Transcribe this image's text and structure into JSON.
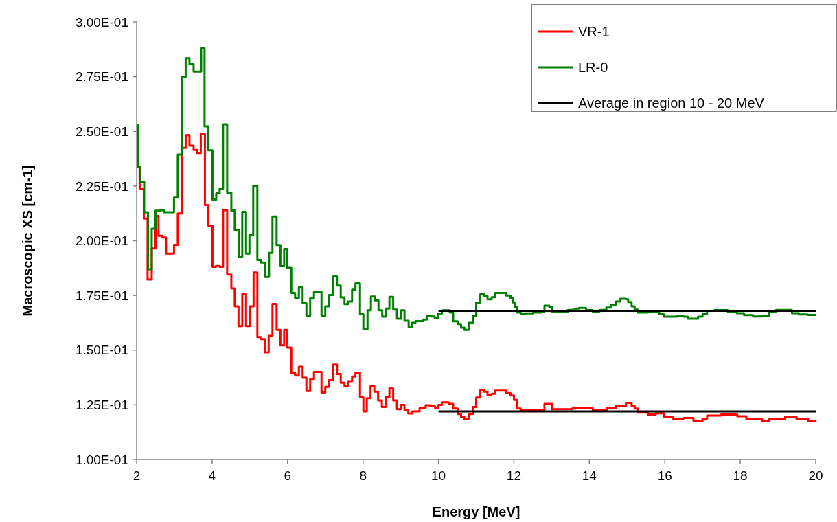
{
  "chart_data": {
    "type": "step",
    "xlabel": "Energy [MeV]",
    "ylabel": "Macroscopic XS [cm-1]",
    "xlim": [
      2,
      20
    ],
    "xticks": [
      2,
      4,
      6,
      8,
      10,
      12,
      14,
      16,
      18,
      20
    ],
    "ylim": [
      0.1,
      0.3
    ],
    "yticks": [
      {
        "value": 0.1,
        "label": "1.00E-01"
      },
      {
        "value": 0.125,
        "label": "1.25E-01"
      },
      {
        "value": 0.15,
        "label": "1.50E-01"
      },
      {
        "value": 0.175,
        "label": "1.75E-01"
      },
      {
        "value": 0.2,
        "label": "2.00E-01"
      },
      {
        "value": 0.225,
        "label": "2.25E-01"
      },
      {
        "value": 0.25,
        "label": "2.50E-01"
      },
      {
        "value": 0.275,
        "label": "2.75E-01"
      },
      {
        "value": 0.3,
        "label": "3.00E-01"
      }
    ],
    "grid": false,
    "legend": "top right",
    "line_style": "solid",
    "marker": "none",
    "series": [
      {
        "name": "VR-1",
        "color": "#ff0000",
        "x": [
          2.0,
          2.08,
          2.19,
          2.29,
          2.4,
          2.5,
          2.58,
          2.68,
          2.78,
          2.99,
          3.09,
          3.2,
          3.3,
          3.4,
          3.51,
          3.6,
          3.7,
          3.81,
          3.9,
          4.01,
          4.1,
          4.2,
          4.29,
          4.4,
          4.51,
          4.6,
          4.7,
          4.8,
          4.9,
          5.0,
          5.1,
          5.2,
          5.3,
          5.4,
          5.5,
          5.6,
          5.71,
          5.81,
          5.91,
          5.99,
          6.1,
          6.2,
          6.3,
          6.4,
          6.5,
          6.6,
          6.7,
          6.9,
          7.0,
          7.1,
          7.21,
          7.31,
          7.41,
          7.51,
          7.6,
          7.71,
          7.8,
          7.92,
          8.01,
          8.1,
          8.2,
          8.3,
          8.4,
          8.5,
          8.6,
          8.7,
          8.8,
          8.9,
          9.0,
          9.1,
          9.2,
          9.3,
          9.5,
          9.66,
          9.78,
          9.91,
          10.0,
          10.09,
          10.27,
          10.39,
          10.51,
          10.6,
          10.69,
          10.8,
          10.91,
          11.0,
          11.11,
          11.21,
          11.3,
          11.41,
          11.5,
          11.8,
          11.91,
          12.0,
          12.09,
          12.18,
          12.81,
          13.01,
          13.55,
          14.09,
          14.46,
          14.7,
          14.97,
          15.12,
          15.2,
          15.28,
          15.55,
          15.76,
          15.97,
          16.22,
          16.49,
          16.76,
          17.0,
          17.12,
          17.49,
          17.92,
          18.16,
          18.58,
          18.76,
          19.19,
          19.49,
          19.8,
          20
        ],
        "values": [
          0.2339,
          0.2237,
          0.2101,
          0.1823,
          0.1965,
          0.2113,
          0.2023,
          0.2015,
          0.1941,
          0.1981,
          0.2125,
          0.2425,
          0.2483,
          0.2435,
          0.2415,
          0.2401,
          0.2488,
          0.2163,
          0.2069,
          0.1881,
          0.1885,
          0.1881,
          0.214,
          0.1845,
          0.1782,
          0.17,
          0.161,
          0.1757,
          0.161,
          0.17,
          0.1855,
          0.156,
          0.155,
          0.149,
          0.1565,
          0.1711,
          0.1593,
          0.1522,
          0.1593,
          0.1512,
          0.1397,
          0.1384,
          0.1424,
          0.1374,
          0.1313,
          0.1368,
          0.14,
          0.1306,
          0.1332,
          0.1363,
          0.1434,
          0.1391,
          0.1351,
          0.1334,
          0.1358,
          0.1379,
          0.1397,
          0.1284,
          0.122,
          0.128,
          0.1335,
          0.131,
          0.127,
          0.124,
          0.1285,
          0.1325,
          0.127,
          0.123,
          0.125,
          0.1225,
          0.121,
          0.122,
          0.1235,
          0.1248,
          0.1243,
          0.1234,
          0.125,
          0.1261,
          0.1254,
          0.1233,
          0.1208,
          0.1194,
          0.1185,
          0.1208,
          0.124,
          0.1283,
          0.1318,
          0.131,
          0.1297,
          0.1301,
          0.1315,
          0.1304,
          0.1293,
          0.1272,
          0.1233,
          0.1226,
          0.1254,
          0.123,
          0.1234,
          0.1226,
          0.1234,
          0.1243,
          0.1259,
          0.1245,
          0.1233,
          0.1214,
          0.1206,
          0.1211,
          0.1193,
          0.1185,
          0.119,
          0.1177,
          0.1187,
          0.1201,
          0.1206,
          0.1198,
          0.1185,
          0.1175,
          0.1187,
          0.1196,
          0.1187,
          0.1176,
          0.1175
        ]
      },
      {
        "name": "LR-0",
        "color": "#008000",
        "x": [
          2.0,
          2.03,
          2.08,
          2.2,
          2.3,
          2.4,
          2.5,
          2.62,
          2.72,
          2.99,
          3.09,
          3.2,
          3.3,
          3.4,
          3.51,
          3.71,
          3.8,
          3.9,
          4.01,
          4.11,
          4.2,
          4.29,
          4.4,
          4.51,
          4.6,
          4.71,
          4.8,
          4.9,
          4.99,
          5.09,
          5.2,
          5.3,
          5.4,
          5.51,
          5.6,
          5.71,
          5.81,
          5.91,
          5.99,
          6.1,
          6.2,
          6.3,
          6.4,
          6.5,
          6.6,
          6.7,
          6.9,
          7.0,
          7.1,
          7.21,
          7.31,
          7.41,
          7.51,
          7.6,
          7.71,
          7.8,
          7.92,
          8.01,
          8.12,
          8.21,
          8.32,
          8.41,
          8.51,
          8.6,
          8.7,
          8.8,
          8.9,
          9.01,
          9.1,
          9.21,
          9.3,
          9.39,
          9.6,
          9.69,
          9.81,
          9.9,
          9.99,
          10.09,
          10.3,
          10.39,
          10.51,
          10.6,
          10.69,
          10.8,
          10.91,
          11.0,
          11.11,
          11.21,
          11.3,
          11.41,
          11.5,
          11.8,
          11.91,
          11.97,
          12.03,
          12.09,
          12.18,
          12.3,
          12.51,
          12.73,
          12.81,
          12.94,
          13.01,
          13.43,
          13.61,
          13.73,
          13.91,
          14.09,
          14.27,
          14.45,
          14.58,
          14.7,
          14.82,
          14.97,
          15.03,
          15.12,
          15.2,
          15.28,
          15.55,
          15.85,
          15.97,
          16.33,
          16.49,
          16.61,
          16.88,
          17.0,
          17.12,
          17.31,
          17.67,
          17.91,
          18.1,
          18.34,
          18.58,
          18.76,
          18.95,
          19.37,
          19.55,
          19.79,
          20
        ],
        "values": [
          0.253,
          0.234,
          0.227,
          0.213,
          0.187,
          0.2055,
          0.2137,
          0.214,
          0.213,
          0.2197,
          0.2394,
          0.275,
          0.2834,
          0.2807,
          0.2773,
          0.2879,
          0.2523,
          0.2414,
          0.2188,
          0.2217,
          0.2237,
          0.2532,
          0.2219,
          0.2138,
          0.2049,
          0.1928,
          0.2132,
          0.1941,
          0.2025,
          0.2251,
          0.1912,
          0.19,
          0.1834,
          0.1944,
          0.2111,
          0.198,
          0.1884,
          0.1962,
          0.1876,
          0.1761,
          0.1739,
          0.1787,
          0.1714,
          0.1658,
          0.1737,
          0.1766,
          0.1658,
          0.17,
          0.1752,
          0.1837,
          0.1795,
          0.1741,
          0.171,
          0.1722,
          0.1776,
          0.1805,
          0.1664,
          0.1595,
          0.1682,
          0.1745,
          0.1728,
          0.1682,
          0.1653,
          0.169,
          0.1743,
          0.1685,
          0.1644,
          0.1682,
          0.1634,
          0.1606,
          0.1625,
          0.1633,
          0.164,
          0.1658,
          0.1654,
          0.1648,
          0.1667,
          0.1682,
          0.1672,
          0.1632,
          0.1619,
          0.1603,
          0.1593,
          0.1625,
          0.1658,
          0.1717,
          0.1756,
          0.1749,
          0.1732,
          0.1742,
          0.1761,
          0.175,
          0.1739,
          0.1718,
          0.1698,
          0.1672,
          0.1664,
          0.1668,
          0.1672,
          0.1675,
          0.1703,
          0.1696,
          0.1675,
          0.1684,
          0.169,
          0.1693,
          0.1683,
          0.1677,
          0.1684,
          0.1695,
          0.1708,
          0.1722,
          0.1735,
          0.1732,
          0.172,
          0.17,
          0.1685,
          0.1672,
          0.1675,
          0.1665,
          0.1653,
          0.1658,
          0.1653,
          0.1644,
          0.1653,
          0.1665,
          0.168,
          0.1683,
          0.1675,
          0.1669,
          0.166,
          0.1654,
          0.1658,
          0.1677,
          0.1684,
          0.1669,
          0.1663,
          0.1661,
          0.1661
        ]
      },
      {
        "name": "Average in region 10 - 20 MeV",
        "type": "line",
        "color": "#000000",
        "x": [
          10,
          20
        ],
        "values": [
          0.168,
          0.168
        ]
      },
      {
        "type": "line",
        "color": "#000000",
        "x": [
          10,
          20
        ],
        "values": [
          0.122,
          0.122
        ]
      }
    ]
  }
}
